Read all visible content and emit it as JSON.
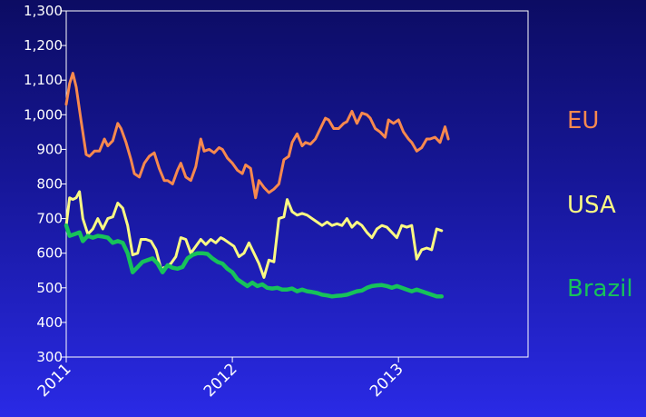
{
  "chart_data": {
    "type": "line",
    "title": "",
    "xlabel": "",
    "ylabel": "",
    "ylim": [
      300,
      1300
    ],
    "xlim": [
      2011.0,
      2013.78
    ],
    "yticks": [
      300,
      400,
      500,
      600,
      700,
      800,
      900,
      1000,
      1100,
      1200,
      1300
    ],
    "ytick_labels": [
      "300",
      "400",
      "500",
      "600",
      "700",
      "800",
      "900",
      "1,000",
      "1,100",
      "1,200",
      "1,300"
    ],
    "xticks": [
      2011,
      2012,
      2013
    ],
    "xtick_labels": [
      "2011",
      "2012",
      "2013"
    ],
    "grid": false,
    "legend": "right",
    "series": [
      {
        "name": "EU",
        "color": "#f7894e",
        "points": [
          [
            2011.0,
            1030
          ],
          [
            2011.02,
            1090
          ],
          [
            2011.04,
            1120
          ],
          [
            2011.06,
            1080
          ],
          [
            2011.09,
            980
          ],
          [
            2011.12,
            885
          ],
          [
            2011.14,
            880
          ],
          [
            2011.17,
            895
          ],
          [
            2011.2,
            895
          ],
          [
            2011.23,
            930
          ],
          [
            2011.25,
            910
          ],
          [
            2011.28,
            925
          ],
          [
            2011.31,
            975
          ],
          [
            2011.33,
            960
          ],
          [
            2011.36,
            920
          ],
          [
            2011.39,
            870
          ],
          [
            2011.41,
            830
          ],
          [
            2011.44,
            820
          ],
          [
            2011.47,
            860
          ],
          [
            2011.5,
            880
          ],
          [
            2011.53,
            890
          ],
          [
            2011.56,
            845
          ],
          [
            2011.59,
            810
          ],
          [
            2011.61,
            810
          ],
          [
            2011.64,
            800
          ],
          [
            2011.67,
            840
          ],
          [
            2011.69,
            860
          ],
          [
            2011.72,
            820
          ],
          [
            2011.75,
            810
          ],
          [
            2011.78,
            850
          ],
          [
            2011.81,
            930
          ],
          [
            2011.83,
            895
          ],
          [
            2011.86,
            900
          ],
          [
            2011.89,
            890
          ],
          [
            2011.92,
            905
          ],
          [
            2011.94,
            900
          ],
          [
            2011.97,
            875
          ],
          [
            2012.0,
            860
          ],
          [
            2012.03,
            840
          ],
          [
            2012.06,
            830
          ],
          [
            2012.08,
            855
          ],
          [
            2012.11,
            845
          ],
          [
            2012.14,
            760
          ],
          [
            2012.16,
            810
          ],
          [
            2012.19,
            790
          ],
          [
            2012.22,
            775
          ],
          [
            2012.25,
            785
          ],
          [
            2012.28,
            800
          ],
          [
            2012.31,
            870
          ],
          [
            2012.34,
            880
          ],
          [
            2012.36,
            920
          ],
          [
            2012.39,
            945
          ],
          [
            2012.42,
            910
          ],
          [
            2012.44,
            920
          ],
          [
            2012.47,
            915
          ],
          [
            2012.5,
            930
          ],
          [
            2012.53,
            960
          ],
          [
            2012.56,
            990
          ],
          [
            2012.58,
            985
          ],
          [
            2012.61,
            960
          ],
          [
            2012.64,
            960
          ],
          [
            2012.67,
            975
          ],
          [
            2012.69,
            980
          ],
          [
            2012.72,
            1010
          ],
          [
            2012.75,
            975
          ],
          [
            2012.78,
            1005
          ],
          [
            2012.81,
            1000
          ],
          [
            2012.83,
            990
          ],
          [
            2012.86,
            960
          ],
          [
            2012.89,
            950
          ],
          [
            2012.92,
            935
          ],
          [
            2012.94,
            985
          ],
          [
            2012.97,
            975
          ],
          [
            2013.0,
            985
          ],
          [
            2013.03,
            950
          ],
          [
            2013.06,
            930
          ],
          [
            2013.08,
            920
          ],
          [
            2013.11,
            895
          ],
          [
            2013.14,
            905
          ],
          [
            2013.17,
            930
          ],
          [
            2013.19,
            930
          ],
          [
            2013.22,
            935
          ],
          [
            2013.25,
            920
          ],
          [
            2013.28,
            965
          ],
          [
            2013.3,
            930
          ]
        ]
      },
      {
        "name": "USA",
        "color": "#fbf983",
        "points": [
          [
            2011.0,
            680
          ],
          [
            2011.02,
            760
          ],
          [
            2011.04,
            755
          ],
          [
            2011.06,
            760
          ],
          [
            2011.08,
            778
          ],
          [
            2011.1,
            700
          ],
          [
            2011.13,
            655
          ],
          [
            2011.16,
            670
          ],
          [
            2011.19,
            700
          ],
          [
            2011.22,
            670
          ],
          [
            2011.25,
            700
          ],
          [
            2011.28,
            705
          ],
          [
            2011.31,
            745
          ],
          [
            2011.34,
            730
          ],
          [
            2011.37,
            680
          ],
          [
            2011.4,
            595
          ],
          [
            2011.43,
            600
          ],
          [
            2011.45,
            640
          ],
          [
            2011.48,
            640
          ],
          [
            2011.51,
            635
          ],
          [
            2011.54,
            610
          ],
          [
            2011.57,
            555
          ],
          [
            2011.6,
            560
          ],
          [
            2011.63,
            570
          ],
          [
            2011.66,
            590
          ],
          [
            2011.69,
            645
          ],
          [
            2011.72,
            640
          ],
          [
            2011.75,
            600
          ],
          [
            2011.78,
            620
          ],
          [
            2011.81,
            640
          ],
          [
            2011.84,
            625
          ],
          [
            2011.87,
            640
          ],
          [
            2011.9,
            630
          ],
          [
            2011.93,
            645
          ],
          [
            2011.95,
            640
          ],
          [
            2011.98,
            630
          ],
          [
            2012.01,
            620
          ],
          [
            2012.04,
            590
          ],
          [
            2012.07,
            600
          ],
          [
            2012.1,
            630
          ],
          [
            2012.13,
            600
          ],
          [
            2012.16,
            570
          ],
          [
            2012.19,
            530
          ],
          [
            2012.22,
            580
          ],
          [
            2012.25,
            575
          ],
          [
            2012.28,
            700
          ],
          [
            2012.31,
            705
          ],
          [
            2012.33,
            755
          ],
          [
            2012.36,
            720
          ],
          [
            2012.39,
            710
          ],
          [
            2012.42,
            715
          ],
          [
            2012.45,
            710
          ],
          [
            2012.48,
            700
          ],
          [
            2012.51,
            690
          ],
          [
            2012.54,
            680
          ],
          [
            2012.57,
            690
          ],
          [
            2012.6,
            680
          ],
          [
            2012.63,
            685
          ],
          [
            2012.66,
            680
          ],
          [
            2012.69,
            700
          ],
          [
            2012.72,
            675
          ],
          [
            2012.75,
            690
          ],
          [
            2012.78,
            680
          ],
          [
            2012.81,
            660
          ],
          [
            2012.84,
            645
          ],
          [
            2012.87,
            670
          ],
          [
            2012.9,
            680
          ],
          [
            2012.93,
            675
          ],
          [
            2012.96,
            660
          ],
          [
            2012.99,
            645
          ],
          [
            2013.02,
            680
          ],
          [
            2013.05,
            675
          ],
          [
            2013.08,
            680
          ],
          [
            2013.11,
            583
          ],
          [
            2013.14,
            610
          ],
          [
            2013.17,
            615
          ],
          [
            2013.2,
            610
          ],
          [
            2013.23,
            670
          ],
          [
            2013.26,
            665
          ]
        ]
      },
      {
        "name": "Brazil",
        "color": "#17c25a",
        "points": [
          [
            2011.0,
            680
          ],
          [
            2011.02,
            650
          ],
          [
            2011.05,
            655
          ],
          [
            2011.08,
            660
          ],
          [
            2011.1,
            635
          ],
          [
            2011.13,
            650
          ],
          [
            2011.16,
            645
          ],
          [
            2011.19,
            650
          ],
          [
            2011.22,
            648
          ],
          [
            2011.25,
            645
          ],
          [
            2011.28,
            630
          ],
          [
            2011.31,
            635
          ],
          [
            2011.34,
            630
          ],
          [
            2011.37,
            600
          ],
          [
            2011.4,
            545
          ],
          [
            2011.43,
            560
          ],
          [
            2011.46,
            575
          ],
          [
            2011.49,
            580
          ],
          [
            2011.52,
            585
          ],
          [
            2011.55,
            570
          ],
          [
            2011.58,
            545
          ],
          [
            2011.61,
            565
          ],
          [
            2011.64,
            558
          ],
          [
            2011.67,
            555
          ],
          [
            2011.7,
            560
          ],
          [
            2011.73,
            585
          ],
          [
            2011.76,
            595
          ],
          [
            2011.79,
            600
          ],
          [
            2011.82,
            600
          ],
          [
            2011.85,
            598
          ],
          [
            2011.88,
            585
          ],
          [
            2011.91,
            575
          ],
          [
            2011.94,
            570
          ],
          [
            2011.97,
            555
          ],
          [
            2012.0,
            545
          ],
          [
            2012.03,
            525
          ],
          [
            2012.06,
            515
          ],
          [
            2012.09,
            505
          ],
          [
            2012.12,
            515
          ],
          [
            2012.15,
            505
          ],
          [
            2012.18,
            510
          ],
          [
            2012.21,
            500
          ],
          [
            2012.24,
            498
          ],
          [
            2012.27,
            500
          ],
          [
            2012.3,
            495
          ],
          [
            2012.33,
            495
          ],
          [
            2012.36,
            498
          ],
          [
            2012.39,
            490
          ],
          [
            2012.42,
            495
          ],
          [
            2012.45,
            490
          ],
          [
            2012.48,
            488
          ],
          [
            2012.51,
            485
          ],
          [
            2012.54,
            480
          ],
          [
            2012.57,
            478
          ],
          [
            2012.6,
            475
          ],
          [
            2012.63,
            477
          ],
          [
            2012.66,
            478
          ],
          [
            2012.69,
            480
          ],
          [
            2012.72,
            485
          ],
          [
            2012.75,
            490
          ],
          [
            2012.78,
            492
          ],
          [
            2012.81,
            500
          ],
          [
            2012.84,
            505
          ],
          [
            2012.87,
            507
          ],
          [
            2012.9,
            508
          ],
          [
            2012.93,
            505
          ],
          [
            2012.96,
            500
          ],
          [
            2012.99,
            505
          ],
          [
            2013.02,
            500
          ],
          [
            2013.05,
            495
          ],
          [
            2013.08,
            490
          ],
          [
            2013.11,
            495
          ],
          [
            2013.14,
            490
          ],
          [
            2013.17,
            485
          ],
          [
            2013.2,
            480
          ],
          [
            2013.23,
            475
          ],
          [
            2013.26,
            475
          ]
        ]
      }
    ]
  }
}
